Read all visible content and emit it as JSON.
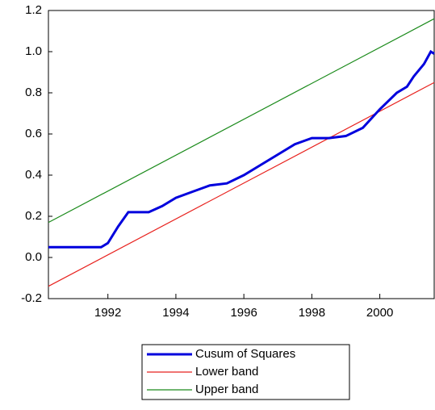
{
  "chart_data": {
    "type": "line",
    "xlim": [
      1990.25,
      2001.6
    ],
    "xticks": [
      1992,
      1994,
      1996,
      1998,
      2000
    ],
    "ylim": [
      -0.2,
      1.2
    ],
    "yticks": [
      -0.2,
      {
        "value": 0,
        "label": "0.0"
      },
      0.2,
      0.4,
      0.6,
      0.8,
      {
        "value": 1,
        "label": "1.0"
      },
      1.2
    ],
    "legend": "bottom",
    "series": [
      {
        "name": "Cusum of Squares",
        "color": "#0000dd",
        "x": [
          1990.25,
          1991.0,
          1991.8,
          1992.0,
          1992.3,
          1992.6,
          1993.2,
          1993.6,
          1994.0,
          1994.5,
          1995.0,
          1995.5,
          1996.0,
          1996.5,
          1997.0,
          1997.5,
          1998.0,
          1998.5,
          1999.0,
          1999.5,
          2000.0,
          2000.5,
          2000.8,
          2001.0,
          2001.3,
          2001.5,
          2001.6
        ],
        "values": [
          0.05,
          0.05,
          0.05,
          0.07,
          0.15,
          0.22,
          0.22,
          0.25,
          0.29,
          0.32,
          0.35,
          0.36,
          0.4,
          0.45,
          0.5,
          0.55,
          0.58,
          0.58,
          0.59,
          0.63,
          0.72,
          0.8,
          0.83,
          0.88,
          0.94,
          1.0,
          0.99
        ]
      },
      {
        "name": "Lower band",
        "color": "#e8221e",
        "x": [
          1990.25,
          2001.6
        ],
        "values": [
          -0.14,
          0.85
        ]
      },
      {
        "name": "Upper band",
        "color": "#1a8a1a",
        "x": [
          1990.25,
          2001.6
        ],
        "values": [
          0.17,
          1.16
        ]
      }
    ]
  }
}
